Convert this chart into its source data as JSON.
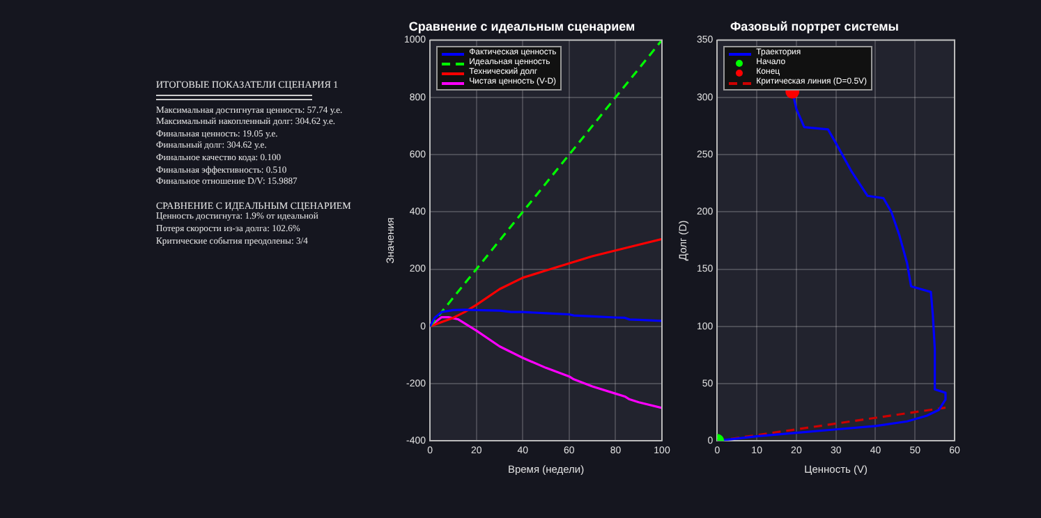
{
  "chart_data": [
    {
      "type": "other",
      "title": "ИТОГОВЫЕ ПОКАЗАТЕЛИ СЦЕНАРИЯ 1",
      "annotations": [
        "Максимальная достигнутая ценность: 57.74 у.е.",
        "Максимальный накопленный долг: 304.62 у.е.",
        "Финальная ценность: 19.05 у.е.",
        "Финальный долг: 304.62 у.е.",
        "Финальное качество кода: 0.100",
        "Финальная эффективность: 0.510",
        "Финальное отношение D/V: 15.9887"
      ]
    },
    {
      "type": "other",
      "title": "СРАВНЕНИЕ С ИДЕАЛЬНЫМ СЦЕНАРИЕМ",
      "annotations": [
        "Ценность достигнута: 1.9% от идеальной",
        "Потеря скорости из-за долга: 102.6%",
        "Критические события преодолены: 3/4"
      ]
    },
    {
      "type": "line",
      "title": "Сравнение с идеальным сценарием",
      "xlabel": "Время (недели)",
      "ylabel": "Значения",
      "xlim": [
        0,
        100
      ],
      "xticks": [
        0,
        20,
        40,
        60,
        80,
        100
      ],
      "ylim": [
        -400,
        1000
      ],
      "yticks": [
        -400,
        -200,
        0,
        200,
        400,
        600,
        800,
        1000
      ],
      "grid": true,
      "legend": "top left",
      "series": [
        {
          "name": "Фактическая ценность",
          "color": "#0000ff",
          "x": [
            0,
            2,
            5,
            10,
            15,
            20,
            30,
            35,
            40,
            50,
            60,
            62,
            70,
            80,
            84,
            86,
            90,
            100
          ],
          "values": [
            0,
            30,
            50,
            57,
            58,
            57,
            55,
            50,
            50,
            46,
            42,
            38,
            35,
            31,
            30,
            24,
            23,
            19
          ]
        },
        {
          "name": "Идеальная ценность",
          "color": "#00ff00",
          "line_style": "dashed",
          "x": [
            0,
            100
          ],
          "values": [
            0,
            1000
          ]
        },
        {
          "name": "Технический долг",
          "color": "#ff0000",
          "x": [
            0,
            10,
            15,
            20,
            30,
            40,
            50,
            60,
            70,
            80,
            90,
            100
          ],
          "values": [
            0,
            30,
            50,
            75,
            130,
            170,
            195,
            220,
            245,
            265,
            285,
            305
          ]
        },
        {
          "name": "Чистая ценность (V-D)",
          "color": "#ff00ff",
          "x": [
            0,
            5,
            8,
            12,
            20,
            30,
            35,
            40,
            50,
            60,
            62,
            70,
            80,
            84,
            86,
            90,
            100
          ],
          "values": [
            0,
            32,
            32,
            25,
            -15,
            -70,
            -90,
            -110,
            -145,
            -175,
            -185,
            -210,
            -235,
            -245,
            -255,
            -265,
            -285
          ]
        }
      ]
    },
    {
      "type": "line",
      "title": "Фазовый портрет системы",
      "xlabel": "Ценность (V)",
      "ylabel": "Долг (D)",
      "xlim": [
        0,
        60
      ],
      "xticks": [
        0,
        10,
        20,
        30,
        40,
        50,
        60
      ],
      "ylim": [
        0,
        350
      ],
      "yticks": [
        0,
        50,
        100,
        150,
        200,
        250,
        300,
        350
      ],
      "grid": true,
      "legend": "top left",
      "series": [
        {
          "name": "Траектория",
          "color": "#0000ff",
          "x": [
            0,
            10,
            20,
            30,
            40,
            48,
            53,
            56,
            57.7,
            57.7,
            55,
            55,
            54.5,
            54,
            49,
            48,
            46,
            44,
            42,
            38,
            34,
            30,
            28,
            22,
            20,
            19
          ],
          "values": [
            0,
            4,
            7,
            10,
            13,
            17,
            22,
            27,
            36,
            42,
            45,
            80,
            110,
            130,
            135,
            155,
            180,
            200,
            212,
            214,
            235,
            260,
            272,
            274,
            290,
            305
          ]
        },
        {
          "name": "Начало",
          "type": "scatter",
          "marker": "circle",
          "color": "#00ff00",
          "x": [
            0
          ],
          "values": [
            0
          ]
        },
        {
          "name": "Конец",
          "type": "scatter",
          "marker": "circle",
          "color": "#ff0000",
          "x": [
            19
          ],
          "values": [
            305
          ]
        },
        {
          "name": "Критическая линия (D=0.5V)",
          "color": "#cc0000",
          "line_style": "dashed",
          "x": [
            0,
            57.7
          ],
          "values": [
            0,
            29
          ]
        }
      ]
    }
  ]
}
